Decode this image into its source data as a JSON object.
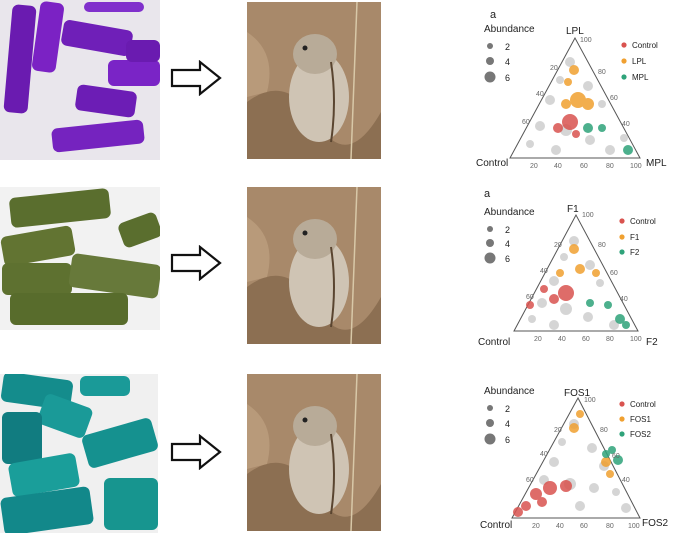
{
  "rows": [
    {
      "pellet_color": "purple",
      "panel": {
        "letter": "a",
        "abundance_title": "Abundance",
        "abundance_levels": [
          "2",
          "4",
          "6"
        ],
        "top_label": "LPL",
        "left_label": "Control",
        "right_label": "MPL",
        "legend": [
          {
            "label": "Control",
            "color": "#d9534f"
          },
          {
            "label": "LPL",
            "color": "#f0a030"
          },
          {
            "label": "MPL",
            "color": "#2fa37a"
          }
        ]
      }
    },
    {
      "pellet_color": "green",
      "panel": {
        "letter": "a",
        "abundance_title": "Abundance",
        "abundance_levels": [
          "2",
          "4",
          "6"
        ],
        "top_label": "F1",
        "left_label": "Control",
        "right_label": "F2",
        "legend": [
          {
            "label": "Control",
            "color": "#d9534f"
          },
          {
            "label": "F1",
            "color": "#f0a030"
          },
          {
            "label": "F2",
            "color": "#2fa37a"
          }
        ]
      }
    },
    {
      "pellet_color": "teal",
      "panel": {
        "letter": "",
        "abundance_title": "Abundance",
        "abundance_levels": [
          "2",
          "4",
          "6"
        ],
        "top_label": "FOS1",
        "left_label": "Control",
        "right_label": "FOS2",
        "legend": [
          {
            "label": "Control",
            "color": "#d9534f"
          },
          {
            "label": "FOS1",
            "color": "#f0a030"
          },
          {
            "label": "FOS2",
            "color": "#2fa37a"
          }
        ]
      }
    }
  ],
  "axis_ticks": [
    "20",
    "40",
    "60",
    "80",
    "100"
  ]
}
